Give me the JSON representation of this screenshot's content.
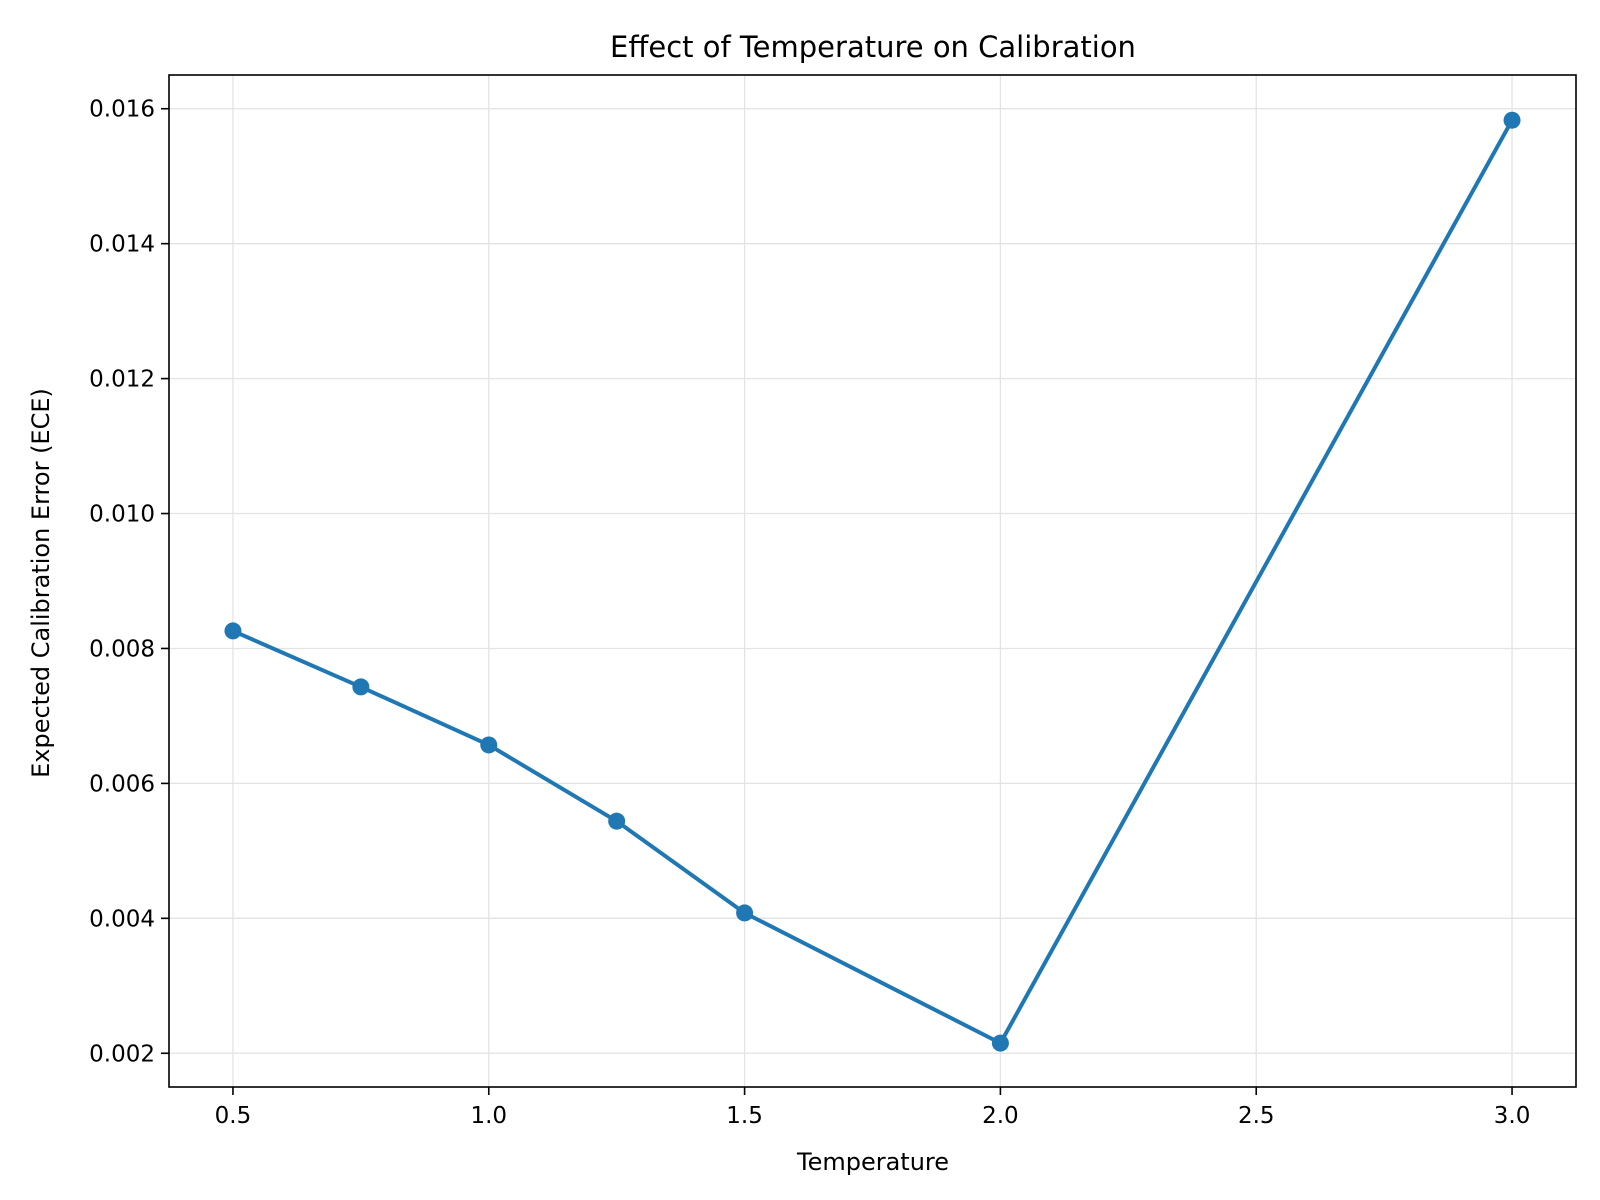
{
  "chart_data": {
    "type": "line",
    "title": "Effect of Temperature on Calibration",
    "xlabel": "Temperature",
    "ylabel": "Expected Calibration Error (ECE)",
    "xlim": [
      0.375,
      3.125
    ],
    "ylim": [
      0.0015,
      0.0165
    ],
    "x_ticks": [
      0.5,
      1.0,
      1.5,
      2.0,
      2.5,
      3.0
    ],
    "x_tick_labels": [
      "0.5",
      "1.0",
      "1.5",
      "2.0",
      "2.5",
      "3.0"
    ],
    "y_ticks": [
      0.002,
      0.004,
      0.006,
      0.008,
      0.01,
      0.012,
      0.014,
      0.016
    ],
    "y_tick_labels": [
      "0.002",
      "0.004",
      "0.006",
      "0.008",
      "0.010",
      "0.012",
      "0.014",
      "0.016"
    ],
    "grid": true,
    "legend": "none",
    "series": [
      {
        "x": [
          0.5,
          0.75,
          1.0,
          1.25,
          1.5,
          2.0,
          3.0
        ],
        "y": [
          0.00826,
          0.00743,
          0.00657,
          0.00544,
          0.00408,
          0.00215,
          0.01583
        ],
        "color": "#1f77b4",
        "marker": "circle"
      }
    ]
  }
}
